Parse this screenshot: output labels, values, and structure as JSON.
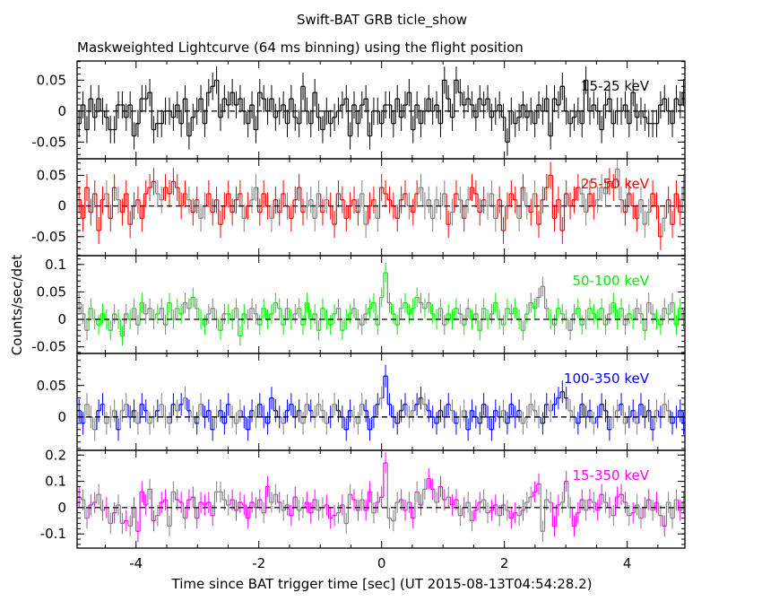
{
  "chart_data": {
    "type": "line",
    "title": "Swift-BAT GRB ticle_show",
    "subtitle": "Maskweighted Lightcurve (64 ms binning) using the flight position",
    "xlabel": "Time since BAT trigger time [sec] (UT 2015-08-13T04:54:28.2)",
    "ylabel": "Counts/sec/det",
    "xlim": [
      -4.96,
      4.94
    ],
    "bin_width": 0.064,
    "x_ticks": [
      -4,
      -2,
      0,
      2,
      4
    ],
    "x_tick_labels": [
      "-4",
      "-2",
      "0",
      "2",
      "4"
    ],
    "panels": [
      {
        "name": "15-25 keV",
        "color": "#000000",
        "ylim": [
          -0.077,
          0.081
        ],
        "err": 0.022,
        "y_ticks": [
          -0.05,
          0,
          0.05
        ],
        "y_tick_labels": [
          "-0.05",
          "0",
          "0.05"
        ],
        "values": [
          -0.02,
          0.01,
          -0.03,
          0.02,
          -0.01,
          0.02,
          0,
          -0.01,
          -0.03,
          -0.03,
          0.01,
          0.01,
          -0.01,
          0.01,
          -0.04,
          -0.02,
          0.02,
          0.02,
          0.03,
          -0.03,
          -0.02,
          -0.02,
          0,
          0,
          -0.01,
          0.01,
          -0.02,
          0.02,
          -0.04,
          -0.01,
          0,
          0.02,
          -0.02,
          0.03,
          0.04,
          0.05,
          -0.01,
          0.02,
          0.01,
          0.03,
          0.01,
          0.02,
          0,
          -0.02,
          0.01,
          -0.03,
          0.03,
          0.02,
          0,
          0.02,
          -0.01,
          0,
          0.01,
          -0.02,
          0.02,
          -0.01,
          -0.02,
          0.04,
          0,
          -0.02,
          0.03,
          -0.01,
          -0.03,
          0,
          -0.02,
          -0.01,
          0,
          0.01,
          0.02,
          -0.04,
          0.01,
          -0.02,
          0.01,
          0.02,
          -0.04,
          0,
          0,
          -0.02,
          0.01,
          0.01,
          -0.02,
          0.02,
          -0.01,
          0.01,
          0.03,
          -0.03,
          0.01,
          -0.02,
          0,
          0.02,
          0,
          0.01,
          -0.02,
          0.05,
          0.02,
          -0.01,
          0.05,
          0.03,
          0.01,
          0.02,
          0.01,
          -0.01,
          0.02,
          0.01,
          0.02,
          -0.01,
          0,
          0.01,
          -0.01,
          -0.05,
          0,
          -0.02,
          -0.01,
          0.01,
          -0.01,
          0,
          -0.02,
          0.01,
          0,
          0.02,
          -0.04,
          0.02,
          0.01,
          0.04,
          0,
          -0.02,
          -0.01,
          0,
          -0.02,
          0.05,
          0,
          0.01,
          0,
          -0.03,
          0.01,
          0.02,
          -0.02,
          0,
          0,
          0.01,
          -0.02,
          0.03,
          -0.01,
          0,
          -0.01,
          -0.02,
          -0.02,
          -0.02,
          0.01,
          0.02,
          0,
          -0.02,
          0.02,
          0.01,
          0.03,
          -0.01
        ]
      },
      {
        "name": "25-50 keV",
        "color": "#ff0000",
        "ylim": [
          -0.081,
          0.077
        ],
        "err": 0.022,
        "y_ticks": [
          -0.05,
          0,
          0.05
        ],
        "y_tick_labels": [
          "-0.05",
          "0",
          "0.05"
        ],
        "values": [
          0.01,
          -0.02,
          0.03,
          -0.01,
          0.02,
          -0.04,
          0.01,
          0.02,
          -0.02,
          0.03,
          0.01,
          -0.01,
          0.02,
          -0.03,
          0,
          0.01,
          -0.02,
          0.02,
          0.03,
          0.04,
          0.02,
          0.01,
          0.03,
          0.02,
          0.04,
          0.03,
          0,
          0.02,
          0.01,
          -0.01,
          0.01,
          -0.02,
          0,
          0.02,
          -0.01,
          0.01,
          -0.03,
          0,
          0.02,
          -0.01,
          0.01,
          0.02,
          -0.02,
          0,
          0.01,
          0.03,
          -0.01,
          0.02,
          0,
          -0.02,
          0.01,
          -0.01,
          0.02,
          0,
          -0.02,
          0.01,
          0.03,
          -0.01,
          0,
          0.01,
          -0.02,
          0.02,
          -0.01,
          0.01,
          0,
          -0.03,
          0.02,
          0.01,
          -0.02,
          0,
          0.01,
          -0.01,
          0.02,
          -0.03,
          0,
          0.01,
          -0.02,
          0.03,
          0.02,
          0.01,
          0,
          -0.02,
          0.01,
          0.02,
          0,
          -0.01,
          0.02,
          0.03,
          0,
          0.01,
          -0.02,
          0.01,
          0,
          0.02,
          -0.03,
          -0.01,
          0.02,
          0.01,
          -0.02,
          0.01,
          0.03,
          0.02,
          -0.01,
          0.01,
          0,
          0.02,
          -0.02,
          0.01,
          -0.04,
          0,
          0.02,
          0.01,
          -0.02,
          0.03,
          0,
          -0.01,
          0.02,
          -0.03,
          0.01,
          0.03,
          0.05,
          -0.02,
          0.01,
          -0.04,
          0.02,
          0,
          0.01,
          0.03,
          0.02,
          -0.01,
          0.02,
          0,
          0.01,
          0.03,
          0.02,
          0.04,
          0.03,
          0.06,
          0.01,
          -0.01,
          0.02,
          0,
          -0.02,
          0.01,
          -0.03,
          -0.01,
          0.02,
          0,
          -0.05,
          -0.02,
          0.01,
          -0.03,
          0.02,
          -0.01,
          0.03,
          0
        ]
      },
      {
        "name": "50-100 keV",
        "color": "#00ee00",
        "ylim": [
          -0.062,
          0.116
        ],
        "err": 0.018,
        "y_ticks": [
          -0.05,
          0,
          0.05,
          0.1
        ],
        "y_tick_labels": [
          "-0.05",
          "0",
          "0.05",
          "0.1"
        ],
        "values": [
          0.03,
          0.01,
          -0.02,
          0.02,
          0,
          -0.01,
          0.01,
          0,
          -0.02,
          0.01,
          0,
          -0.03,
          0.01,
          0,
          0.02,
          -0.01,
          0.03,
          0.01,
          0.02,
          0,
          0.01,
          0.02,
          -0.01,
          0.03,
          0,
          0.02,
          0.01,
          0.03,
          0.02,
          0.04,
          0.02,
          0,
          -0.01,
          0.01,
          0.02,
          0,
          -0.02,
          0.01,
          0.01,
          0,
          0.02,
          -0.03,
          0.01,
          0,
          0.02,
          0.01,
          -0.01,
          0.02,
          0,
          0.01,
          0.03,
          0.02,
          -0.01,
          0.02,
          0,
          0.01,
          0.02,
          -0.01,
          0.03,
          0,
          0.01,
          -0.02,
          0.02,
          0,
          -0.01,
          0.01,
          0.02,
          -0.02,
          0,
          0.01,
          0.02,
          0,
          -0.01,
          0.01,
          0.02,
          0.03,
          -0.01,
          0.04,
          0.085,
          0.03,
          0.01,
          -0.01,
          0.02,
          0.03,
          0.01,
          0.02,
          0.04,
          0.03,
          0.02,
          0.03,
          0.01,
          0,
          0.02,
          -0.01,
          0.01,
          0,
          0.02,
          0.01,
          -0.01,
          0.02,
          0,
          0.01,
          -0.02,
          0.02,
          0,
          0.01,
          0.03,
          0,
          -0.01,
          0.02,
          0.01,
          0.02,
          0,
          -0.02,
          0.01,
          0.03,
          0.02,
          0.04,
          0.06,
          0.02,
          0,
          -0.01,
          0.02,
          0.01,
          0,
          -0.02,
          0.01,
          0.02,
          -0.01,
          0,
          0.02,
          0.01,
          0,
          0.02,
          -0.01,
          0.01,
          0.03,
          0,
          0.02,
          -0.01,
          0.01,
          0,
          0.02,
          0.01,
          -0.02,
          0.03,
          0.01,
          0,
          -0.01,
          0.02,
          0.01,
          0.03,
          -0.01,
          0.02,
          0,
          0.01
        ]
      },
      {
        "name": "100-350 keV",
        "color": "#0000ff",
        "ylim": [
          -0.053,
          0.101
        ],
        "err": 0.018,
        "y_ticks": [
          0,
          0.05
        ],
        "y_tick_labels": [
          "0",
          "0.05"
        ],
        "values": [
          0.01,
          -0.01,
          0.02,
          0,
          -0.02,
          0.01,
          0.02,
          -0.01,
          0,
          0.01,
          -0.02,
          0.01,
          0.02,
          0,
          0.01,
          -0.01,
          0.02,
          0.01,
          -0.01,
          0,
          0.01,
          0.02,
          0,
          -0.01,
          0.02,
          0.01,
          0.02,
          0.03,
          0.01,
          0,
          -0.01,
          0.02,
          0,
          0.01,
          -0.02,
          0,
          0.01,
          -0.01,
          0.02,
          0,
          -0.01,
          0.01,
          0,
          -0.02,
          0.01,
          0,
          0.02,
          0,
          -0.01,
          0.03,
          0.01,
          0,
          -0.01,
          0.01,
          0.02,
          0,
          0.01,
          -0.01,
          0.02,
          0.01,
          0,
          0.02,
          0.01,
          -0.01,
          0,
          0.02,
          0.01,
          0,
          -0.02,
          0.01,
          0,
          -0.01,
          0.02,
          0.01,
          -0.02,
          0,
          0.02,
          0.03,
          0.065,
          0.02,
          0,
          -0.01,
          0.01,
          0.02,
          0,
          0.01,
          0.02,
          0.03,
          0.02,
          0.01,
          0,
          -0.01,
          0.01,
          0,
          0.02,
          0.01,
          -0.01,
          0,
          0.01,
          -0.02,
          0.01,
          0,
          -0.01,
          0.02,
          0,
          -0.02,
          0.01,
          0,
          0.01,
          -0.01,
          0.02,
          0,
          0.01,
          -0.01,
          0,
          0.02,
          0.01,
          0,
          -0.01,
          0.02,
          0.01,
          0.02,
          0.03,
          0.04,
          0.03,
          0.01,
          0,
          -0.01,
          0.02,
          0,
          0.01,
          -0.01,
          0,
          0.02,
          0.01,
          -0.02,
          0,
          0.01,
          0.02,
          -0.01,
          0,
          0.01,
          -0.01,
          0.02,
          0,
          0.01,
          -0.02,
          0.01,
          0,
          0.02,
          0.01,
          -0.01,
          0,
          0.01,
          -0.01,
          0
        ]
      },
      {
        "name": "15-350 keV",
        "color": "#ff00ff",
        "ylim": [
          -0.154,
          0.218
        ],
        "err": 0.04,
        "y_ticks": [
          -0.1,
          0,
          0.1,
          0.2
        ],
        "y_tick_labels": [
          "-0.1",
          "0",
          "0.1",
          "0.2"
        ],
        "values": [
          0.04,
          0.03,
          -0.04,
          0.01,
          0.02,
          0.05,
          -0.01,
          0,
          -0.06,
          -0.02,
          0.01,
          -0.06,
          -0.05,
          -0.07,
          0,
          -0.09,
          0.06,
          0.01,
          0.07,
          -0.05,
          -0.03,
          0.02,
          0.03,
          -0.07,
          0.06,
          0.03,
          0.02,
          -0.04,
          0.03,
          0.04,
          -0.04,
          0.02,
          0.01,
          0.02,
          -0.03,
          0.06,
          0.06,
          0.03,
          0.01,
          0.03,
          -0.01,
          0.02,
          0.01,
          -0.04,
          0.02,
          0,
          0.03,
          -0.02,
          0.08,
          0.02,
          0.05,
          0.02,
          -0.01,
          0.01,
          -0.03,
          0.04,
          -0.01,
          0,
          0.02,
          -0.02,
          0.03,
          -0.01,
          0,
          0.01,
          -0.04,
          -0.03,
          -0.02,
          0.01,
          -0.06,
          0.05,
          0.03,
          -0.01,
          0.03,
          -0.01,
          0.06,
          -0.02,
          0.02,
          0.04,
          0.17,
          -0.04,
          -0.05,
          0.02,
          0.03,
          -0.01,
          0.02,
          -0.04,
          0.06,
          0.01,
          0.07,
          0.11,
          0.07,
          0.02,
          0.08,
          0.03,
          0.04,
          0.01,
          0.03,
          -0.03,
          0,
          0.02,
          -0.05,
          -0.01,
          0.02,
          0.03,
          -0.02,
          -0.01,
          0.01,
          -0.03,
          0.01,
          -0.01,
          -0.04,
          -0.02,
          -0.03,
          -0.01,
          0.02,
          0.04,
          0.06,
          0.09,
          -0.09,
          0.03,
          0.02,
          -0.07,
          0.01,
          0.02,
          0.1,
          0,
          -0.07,
          -0.02,
          0.03,
          -0.01,
          0.03,
          0.02,
          -0.01,
          0.05,
          0.02,
          0,
          -0.03,
          0.04,
          0.05,
          0.02,
          -0.03,
          -0.02,
          0.01,
          -0.04,
          0,
          0.03,
          -0.01,
          0.02,
          -0.03,
          -0.07,
          0.02,
          -0.04,
          0.03,
          -0.01,
          0.02,
          0
        ]
      }
    ]
  }
}
